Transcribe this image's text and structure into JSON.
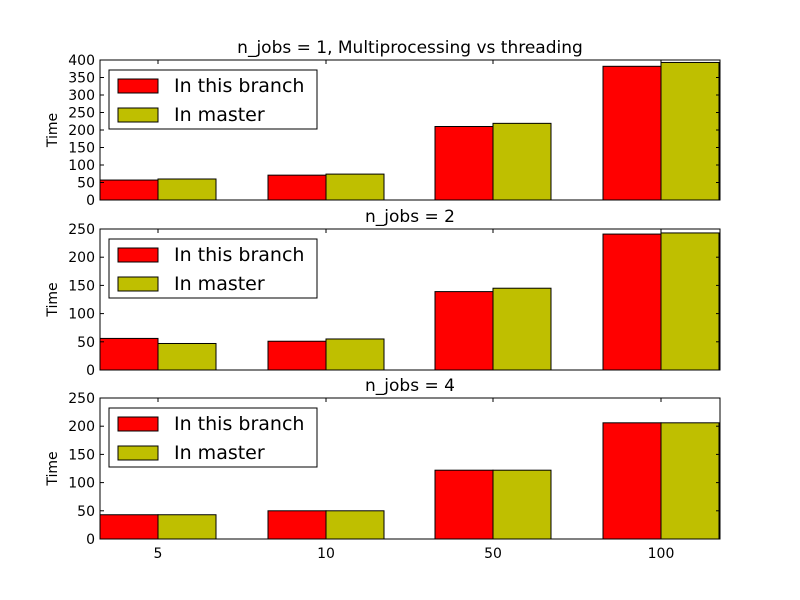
{
  "chart_data": [
    {
      "type": "bar",
      "title": "n_jobs = 1, Multiprocessing vs threading",
      "ylabel": "Time",
      "xlabel": "",
      "categories": [
        "5",
        "10",
        "50",
        "100"
      ],
      "ylim": [
        0,
        400
      ],
      "yticks": [
        "0",
        "50",
        "100",
        "150",
        "200",
        "250",
        "300",
        "350",
        "400"
      ],
      "show_xticklabels": false,
      "legend": "top-left",
      "series": [
        {
          "name": "In this branch",
          "color": "#ff0000",
          "values": [
            57,
            71,
            210,
            382
          ]
        },
        {
          "name": "In master",
          "color": "#bfbf00",
          "values": [
            60,
            74,
            219,
            393
          ]
        }
      ]
    },
    {
      "type": "bar",
      "title": "n_jobs = 2",
      "ylabel": "Time",
      "xlabel": "",
      "categories": [
        "5",
        "10",
        "50",
        "100"
      ],
      "ylim": [
        0,
        250
      ],
      "yticks": [
        "0",
        "50",
        "100",
        "150",
        "200",
        "250"
      ],
      "show_xticklabels": false,
      "legend": "top-left",
      "series": [
        {
          "name": "In this branch",
          "color": "#ff0000",
          "values": [
            56,
            51,
            139,
            241
          ]
        },
        {
          "name": "In master",
          "color": "#bfbf00",
          "values": [
            47,
            55,
            145,
            243
          ]
        }
      ]
    },
    {
      "type": "bar",
      "title": "n_jobs = 4",
      "ylabel": "Time",
      "xlabel": "",
      "categories": [
        "5",
        "10",
        "50",
        "100"
      ],
      "ylim": [
        0,
        250
      ],
      "yticks": [
        "0",
        "50",
        "100",
        "150",
        "200",
        "250"
      ],
      "show_xticklabels": true,
      "legend": "top-left",
      "series": [
        {
          "name": "In this branch",
          "color": "#ff0000",
          "values": [
            43,
            50,
            122,
            206
          ]
        },
        {
          "name": "In master",
          "color": "#bfbf00",
          "values": [
            43,
            50,
            122,
            206
          ]
        }
      ]
    }
  ]
}
